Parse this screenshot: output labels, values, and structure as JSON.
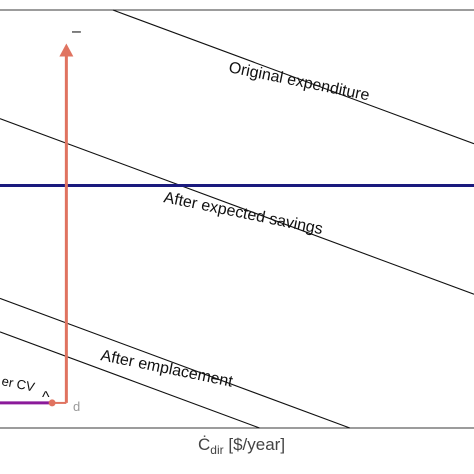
{
  "chart_data": {
    "type": "line",
    "xlabel": "Ċ",
    "xlabel_sub": "dir",
    "xlabel_unit": " [$/year]",
    "ylabel": "",
    "grid": false,
    "series": [
      {
        "name": "Original expenditure",
        "kind": "budget-line",
        "intercept": 1.1
      },
      {
        "name": "After expected savings",
        "kind": "budget-line",
        "intercept": 0.74
      },
      {
        "name": "After emplacement",
        "kind": "budget-line",
        "intercept": 0.31
      },
      {
        "name": "",
        "kind": "budget-line",
        "intercept": 0.23
      }
    ],
    "slope": -0.42,
    "horizontal_line": {
      "y": 0.58,
      "color": "#1a1a7e"
    },
    "vertical_arrow": {
      "x": 0.14,
      "y_from": 0.06,
      "y_to": 0.92,
      "color": "#e07360"
    },
    "purple_segment": {
      "x_from": 0.0,
      "x_to": 0.11,
      "y": 0.06,
      "color": "#8b1a9a"
    },
    "point_d": {
      "x": 0.11,
      "y": 0.06,
      "color": "#e07360"
    },
    "annotations": {
      "top_mark": "–",
      "caret": "^",
      "point_label": "d",
      "fragment_label": "er CV"
    },
    "xlim": [
      0,
      1
    ],
    "ylim": [
      0,
      1
    ]
  }
}
